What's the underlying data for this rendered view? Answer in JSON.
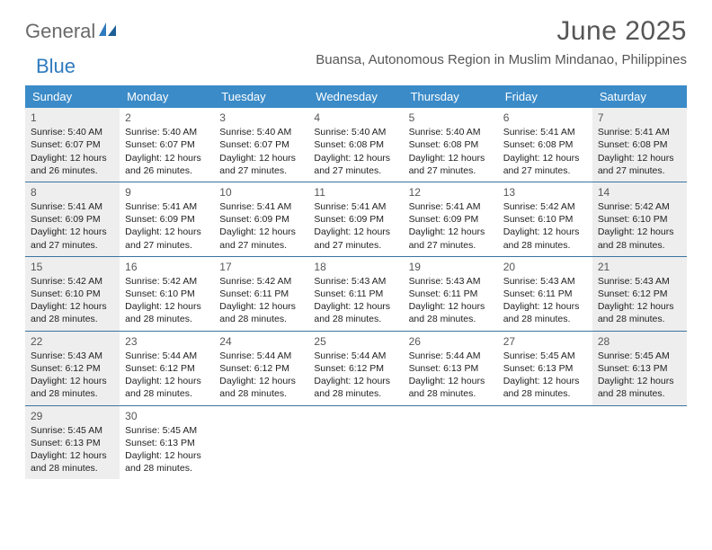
{
  "logo": {
    "text1": "General",
    "text2": "Blue"
  },
  "title": "June 2025",
  "location": "Buansa, Autonomous Region in Muslim Mindanao, Philippines",
  "colors": {
    "header_bg": "#3b8bc8",
    "header_text": "#ffffff",
    "row_divider": "#3b74a0",
    "shaded_bg": "#eeeeee",
    "title_color": "#565656",
    "logo_gray": "#6a6a6a",
    "logo_blue": "#2f7bbf",
    "text_color": "#222222"
  },
  "dow": [
    "Sunday",
    "Monday",
    "Tuesday",
    "Wednesday",
    "Thursday",
    "Friday",
    "Saturday"
  ],
  "weeks": [
    [
      {
        "n": "1",
        "sr": "Sunrise: 5:40 AM",
        "ss": "Sunset: 6:07 PM",
        "dl1": "Daylight: 12 hours",
        "dl2": "and 26 minutes.",
        "shaded": true
      },
      {
        "n": "2",
        "sr": "Sunrise: 5:40 AM",
        "ss": "Sunset: 6:07 PM",
        "dl1": "Daylight: 12 hours",
        "dl2": "and 26 minutes.",
        "shaded": false
      },
      {
        "n": "3",
        "sr": "Sunrise: 5:40 AM",
        "ss": "Sunset: 6:07 PM",
        "dl1": "Daylight: 12 hours",
        "dl2": "and 27 minutes.",
        "shaded": false
      },
      {
        "n": "4",
        "sr": "Sunrise: 5:40 AM",
        "ss": "Sunset: 6:08 PM",
        "dl1": "Daylight: 12 hours",
        "dl2": "and 27 minutes.",
        "shaded": false
      },
      {
        "n": "5",
        "sr": "Sunrise: 5:40 AM",
        "ss": "Sunset: 6:08 PM",
        "dl1": "Daylight: 12 hours",
        "dl2": "and 27 minutes.",
        "shaded": false
      },
      {
        "n": "6",
        "sr": "Sunrise: 5:41 AM",
        "ss": "Sunset: 6:08 PM",
        "dl1": "Daylight: 12 hours",
        "dl2": "and 27 minutes.",
        "shaded": false
      },
      {
        "n": "7",
        "sr": "Sunrise: 5:41 AM",
        "ss": "Sunset: 6:08 PM",
        "dl1": "Daylight: 12 hours",
        "dl2": "and 27 minutes.",
        "shaded": true
      }
    ],
    [
      {
        "n": "8",
        "sr": "Sunrise: 5:41 AM",
        "ss": "Sunset: 6:09 PM",
        "dl1": "Daylight: 12 hours",
        "dl2": "and 27 minutes.",
        "shaded": true
      },
      {
        "n": "9",
        "sr": "Sunrise: 5:41 AM",
        "ss": "Sunset: 6:09 PM",
        "dl1": "Daylight: 12 hours",
        "dl2": "and 27 minutes.",
        "shaded": false
      },
      {
        "n": "10",
        "sr": "Sunrise: 5:41 AM",
        "ss": "Sunset: 6:09 PM",
        "dl1": "Daylight: 12 hours",
        "dl2": "and 27 minutes.",
        "shaded": false
      },
      {
        "n": "11",
        "sr": "Sunrise: 5:41 AM",
        "ss": "Sunset: 6:09 PM",
        "dl1": "Daylight: 12 hours",
        "dl2": "and 27 minutes.",
        "shaded": false
      },
      {
        "n": "12",
        "sr": "Sunrise: 5:41 AM",
        "ss": "Sunset: 6:09 PM",
        "dl1": "Daylight: 12 hours",
        "dl2": "and 27 minutes.",
        "shaded": false
      },
      {
        "n": "13",
        "sr": "Sunrise: 5:42 AM",
        "ss": "Sunset: 6:10 PM",
        "dl1": "Daylight: 12 hours",
        "dl2": "and 28 minutes.",
        "shaded": false
      },
      {
        "n": "14",
        "sr": "Sunrise: 5:42 AM",
        "ss": "Sunset: 6:10 PM",
        "dl1": "Daylight: 12 hours",
        "dl2": "and 28 minutes.",
        "shaded": true
      }
    ],
    [
      {
        "n": "15",
        "sr": "Sunrise: 5:42 AM",
        "ss": "Sunset: 6:10 PM",
        "dl1": "Daylight: 12 hours",
        "dl2": "and 28 minutes.",
        "shaded": true
      },
      {
        "n": "16",
        "sr": "Sunrise: 5:42 AM",
        "ss": "Sunset: 6:10 PM",
        "dl1": "Daylight: 12 hours",
        "dl2": "and 28 minutes.",
        "shaded": false
      },
      {
        "n": "17",
        "sr": "Sunrise: 5:42 AM",
        "ss": "Sunset: 6:11 PM",
        "dl1": "Daylight: 12 hours",
        "dl2": "and 28 minutes.",
        "shaded": false
      },
      {
        "n": "18",
        "sr": "Sunrise: 5:43 AM",
        "ss": "Sunset: 6:11 PM",
        "dl1": "Daylight: 12 hours",
        "dl2": "and 28 minutes.",
        "shaded": false
      },
      {
        "n": "19",
        "sr": "Sunrise: 5:43 AM",
        "ss": "Sunset: 6:11 PM",
        "dl1": "Daylight: 12 hours",
        "dl2": "and 28 minutes.",
        "shaded": false
      },
      {
        "n": "20",
        "sr": "Sunrise: 5:43 AM",
        "ss": "Sunset: 6:11 PM",
        "dl1": "Daylight: 12 hours",
        "dl2": "and 28 minutes.",
        "shaded": false
      },
      {
        "n": "21",
        "sr": "Sunrise: 5:43 AM",
        "ss": "Sunset: 6:12 PM",
        "dl1": "Daylight: 12 hours",
        "dl2": "and 28 minutes.",
        "shaded": true
      }
    ],
    [
      {
        "n": "22",
        "sr": "Sunrise: 5:43 AM",
        "ss": "Sunset: 6:12 PM",
        "dl1": "Daylight: 12 hours",
        "dl2": "and 28 minutes.",
        "shaded": true
      },
      {
        "n": "23",
        "sr": "Sunrise: 5:44 AM",
        "ss": "Sunset: 6:12 PM",
        "dl1": "Daylight: 12 hours",
        "dl2": "and 28 minutes.",
        "shaded": false
      },
      {
        "n": "24",
        "sr": "Sunrise: 5:44 AM",
        "ss": "Sunset: 6:12 PM",
        "dl1": "Daylight: 12 hours",
        "dl2": "and 28 minutes.",
        "shaded": false
      },
      {
        "n": "25",
        "sr": "Sunrise: 5:44 AM",
        "ss": "Sunset: 6:12 PM",
        "dl1": "Daylight: 12 hours",
        "dl2": "and 28 minutes.",
        "shaded": false
      },
      {
        "n": "26",
        "sr": "Sunrise: 5:44 AM",
        "ss": "Sunset: 6:13 PM",
        "dl1": "Daylight: 12 hours",
        "dl2": "and 28 minutes.",
        "shaded": false
      },
      {
        "n": "27",
        "sr": "Sunrise: 5:45 AM",
        "ss": "Sunset: 6:13 PM",
        "dl1": "Daylight: 12 hours",
        "dl2": "and 28 minutes.",
        "shaded": false
      },
      {
        "n": "28",
        "sr": "Sunrise: 5:45 AM",
        "ss": "Sunset: 6:13 PM",
        "dl1": "Daylight: 12 hours",
        "dl2": "and 28 minutes.",
        "shaded": true
      }
    ],
    [
      {
        "n": "29",
        "sr": "Sunrise: 5:45 AM",
        "ss": "Sunset: 6:13 PM",
        "dl1": "Daylight: 12 hours",
        "dl2": "and 28 minutes.",
        "shaded": true
      },
      {
        "n": "30",
        "sr": "Sunrise: 5:45 AM",
        "ss": "Sunset: 6:13 PM",
        "dl1": "Daylight: 12 hours",
        "dl2": "and 28 minutes.",
        "shaded": false
      },
      {
        "empty": true
      },
      {
        "empty": true
      },
      {
        "empty": true
      },
      {
        "empty": true
      },
      {
        "empty": true
      }
    ]
  ]
}
